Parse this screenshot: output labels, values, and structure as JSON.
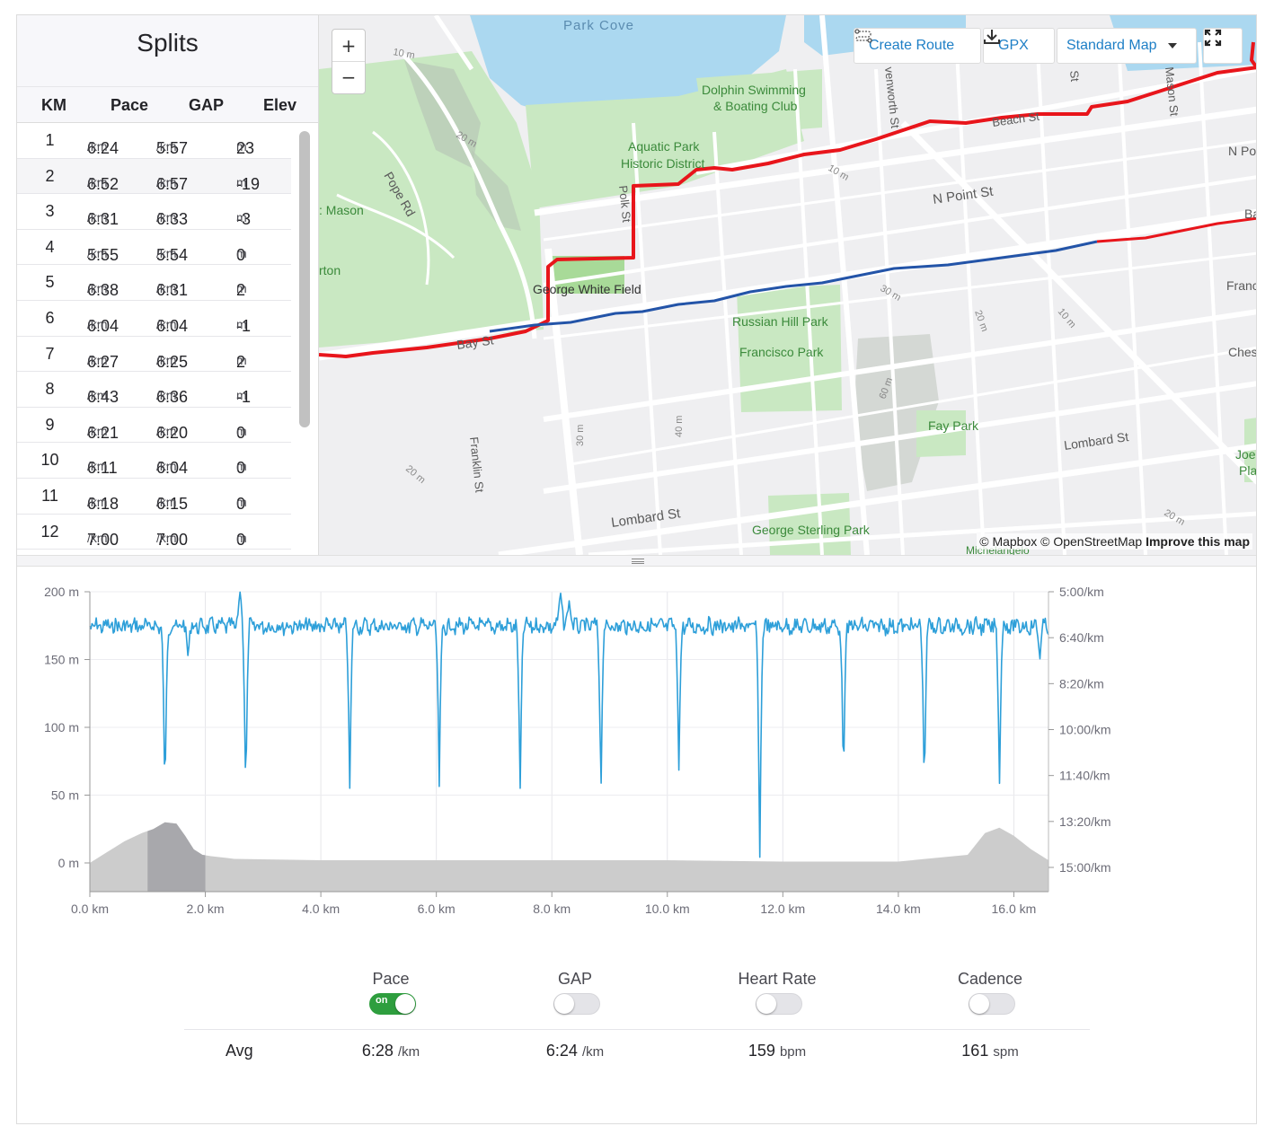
{
  "splits": {
    "title": "Splits",
    "columns": [
      "KM",
      "Pace",
      "GAP",
      "Elev"
    ],
    "rows": [
      {
        "km": "1",
        "pace": "6:24",
        "gap": "5:57",
        "elev": "23"
      },
      {
        "km": "2",
        "pace": "6:52",
        "gap": "6:57",
        "elev": "-19"
      },
      {
        "km": "3",
        "pace": "6:31",
        "gap": "6:33",
        "elev": "-3"
      },
      {
        "km": "4",
        "pace": "5:55",
        "gap": "5:54",
        "elev": "0"
      },
      {
        "km": "5",
        "pace": "6:38",
        "gap": "6:31",
        "elev": "2"
      },
      {
        "km": "6",
        "pace": "6:04",
        "gap": "6:04",
        "elev": "-1"
      },
      {
        "km": "7",
        "pace": "6:27",
        "gap": "6:25",
        "elev": "2"
      },
      {
        "km": "8",
        "pace": "6:43",
        "gap": "6:36",
        "elev": "-1"
      },
      {
        "km": "9",
        "pace": "6:21",
        "gap": "6:20",
        "elev": "0"
      },
      {
        "km": "10",
        "pace": "6:11",
        "gap": "6:04",
        "elev": "0"
      },
      {
        "km": "11",
        "pace": "6:18",
        "gap": "6:15",
        "elev": "0"
      },
      {
        "km": "12",
        "pace": "7:00",
        "gap": "7:00",
        "elev": "0"
      }
    ],
    "pace_unit": "/km",
    "elev_unit": "m"
  },
  "map": {
    "zoom_in": "+",
    "zoom_out": "−",
    "create_route": "Create Route",
    "gpx": "GPX",
    "map_style": "Standard Map",
    "attribution_1": "© Mapbox © OpenStreetMap",
    "attribution_2": "Improve this map",
    "labels": {
      "park_cove": "Park Cove",
      "dolphin_1": "Dolphin Swimming",
      "dolphin_2": "& Boating Club",
      "aquatic_1": "Aquatic Park",
      "aquatic_2": "Historic District",
      "mason": ": Mason",
      "pope_rd": "Pope Rd",
      "orton": "rton",
      "george_white": "George White Field",
      "bay_st": "Bay St",
      "n_point_st": "N Point St",
      "n_po": "N Po",
      "beach_st": "Beach St",
      "russian_hill": "Russian Hill Park",
      "francisco_park": "Francisco Park",
      "fay_park": "Fay Park",
      "lombard_st_1": "Lombard St",
      "lombard_st_2": "Lombard St",
      "franklin_st": "Franklin St",
      "george_sterling": "George Sterling Park",
      "polk_st": "Polk St",
      "leavenworth": "venworth St",
      "mason_st": "Mason St",
      "st": "St",
      "ches": "Ches",
      "franc": "Franc",
      "joe_1": "Joe",
      "joe_2": "Pla",
      "ba": "Ba",
      "michelangelo": "Michelangelo",
      "m10a": "10 m",
      "m20a": "20 m",
      "m10b": "10 m",
      "m30a": "30 m",
      "m20b": "20 m",
      "m10c": "10 m",
      "m60": "60 m",
      "m30b": "30 m",
      "m40": "40 m",
      "m20c": "20 m",
      "m20d": "20 m"
    }
  },
  "chart_data": {
    "type": "line",
    "x_label_unit": "km",
    "x_ticks": [
      "0.0 km",
      "2.0 km",
      "4.0 km",
      "6.0 km",
      "8.0 km",
      "10.0 km",
      "12.0 km",
      "14.0 km",
      "16.0 km"
    ],
    "x_range": [
      0,
      16.6
    ],
    "y_left_ticks": [
      "200 m",
      "150 m",
      "100 m",
      "50 m",
      "0 m"
    ],
    "y_left_range": [
      0,
      200
    ],
    "y_right_ticks": [
      "5:00/km",
      "6:40/km",
      "8:20/km",
      "10:00/km",
      "11:40/km",
      "13:20/km",
      "15:00/km"
    ],
    "y_right_range_seconds_per_km": [
      300,
      900
    ],
    "grid": true,
    "series": [
      {
        "kind": "pace",
        "color": "#2d9fd9",
        "baseline_sec_per_km": 375,
        "dips": [
          {
            "x": 1.3,
            "pace": 768
          },
          {
            "x": 1.7,
            "pace": 444
          },
          {
            "x": 2.7,
            "pace": 756
          },
          {
            "x": 4.5,
            "pace": 732
          },
          {
            "x": 6.05,
            "pace": 726
          },
          {
            "x": 7.45,
            "pace": 744
          },
          {
            "x": 8.85,
            "pace": 750
          },
          {
            "x": 10.2,
            "pace": 690
          },
          {
            "x": 11.6,
            "pace": 900
          },
          {
            "x": 13.05,
            "pace": 726
          },
          {
            "x": 14.45,
            "pace": 750
          },
          {
            "x": 15.75,
            "pace": 732
          },
          {
            "x": 16.45,
            "pace": 450
          }
        ],
        "peaks": [
          {
            "x": 2.6,
            "pace": 300
          },
          {
            "x": 8.15,
            "pace": 300
          },
          {
            "x": 8.3,
            "pace": 320
          }
        ]
      },
      {
        "kind": "elevation",
        "color": "#cccccc",
        "x": [
          0,
          0.3,
          0.6,
          0.9,
          1.1,
          1.3,
          1.5,
          1.65,
          1.8,
          1.95,
          2.1,
          2.5,
          4,
          6,
          8,
          10,
          12,
          14,
          15.2,
          15.5,
          15.75,
          16,
          16.3,
          16.6
        ],
        "y": [
          0,
          8,
          16,
          22,
          25,
          30,
          29,
          20,
          10,
          6,
          5,
          3,
          2,
          2,
          2,
          2,
          1,
          1,
          6,
          22,
          26,
          20,
          10,
          2
        ]
      }
    ],
    "highlight_range_km": [
      1.0,
      2.0
    ]
  },
  "metrics": {
    "items": [
      {
        "label": "Pace",
        "on": true,
        "on_text": "on",
        "avg": "6:28",
        "unit": "/km"
      },
      {
        "label": "GAP",
        "on": false,
        "avg": "6:24",
        "unit": "/km"
      },
      {
        "label": "Heart Rate",
        "on": false,
        "avg": "159",
        "unit": "bpm"
      },
      {
        "label": "Cadence",
        "on": false,
        "avg": "161",
        "unit": "spm"
      }
    ],
    "avg_label": "Avg"
  },
  "colors": {
    "route_red": "#e8151b",
    "route_blue": "#2354a8",
    "water": "#abd8f0",
    "park": "#c9e8c2",
    "accent": "#1e7fc6"
  }
}
